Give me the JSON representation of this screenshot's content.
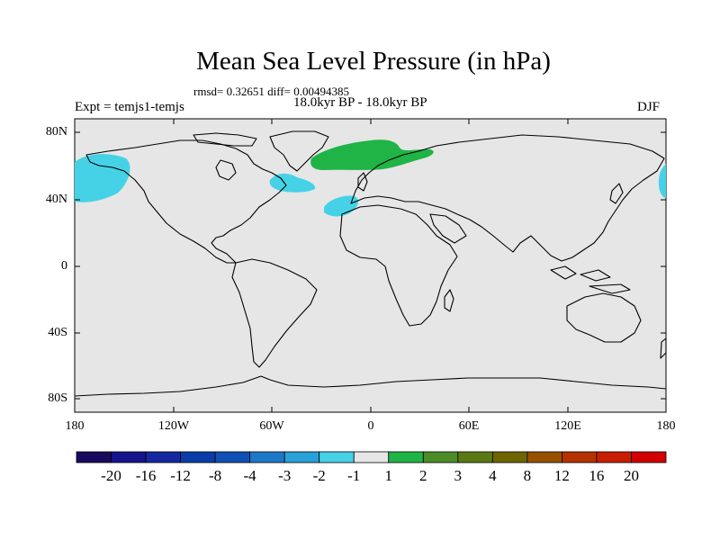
{
  "title": "Mean Sea Level Pressure (in hPa)",
  "stats": "rmsd= 0.32651 diff= 0.00494385",
  "experiment": "Expt = temjs1-temjs",
  "period": "18.0kyr BP - 18.0kyr BP",
  "season": "DJF",
  "y_axis_labels": [
    "80N",
    "40N",
    "0",
    "40S",
    "80S"
  ],
  "x_axis_labels": [
    "180",
    "120W",
    "60W",
    "0",
    "60E",
    "120E",
    "180"
  ],
  "colorbar": {
    "labels": [
      "-20",
      "-16",
      "-12",
      "-8",
      "-4",
      "-3",
      "-2",
      "-1",
      "1",
      "2",
      "3",
      "4",
      "8",
      "12",
      "16",
      "20"
    ],
    "colors": [
      "#1a0a5e",
      "#14148c",
      "#1428a0",
      "#0a3ca8",
      "#1050b4",
      "#1e78c8",
      "#2aa0d8",
      "#46d2e6",
      "#e6e6e6",
      "#20b446",
      "#4b8c28",
      "#5a7814",
      "#6e6400",
      "#965000",
      "#b43200",
      "#c81e00",
      "#d20000"
    ]
  },
  "map": {
    "background": "#e6e6e6",
    "anomalies": [
      {
        "region": "North Pacific",
        "category": "-2 to -1",
        "color": "#46d2e6"
      },
      {
        "region": "Northwest Atlantic",
        "category": "-2 to -1",
        "color": "#46d2e6"
      },
      {
        "region": "Eastern North Atlantic",
        "category": "-2 to -1",
        "color": "#46d2e6"
      },
      {
        "region": "North Atlantic / Scandinavia",
        "category": "1 to 2",
        "color": "#20b446"
      },
      {
        "region": "Northwest Pacific edge",
        "category": "-2 to -1",
        "color": "#46d2e6"
      }
    ]
  }
}
